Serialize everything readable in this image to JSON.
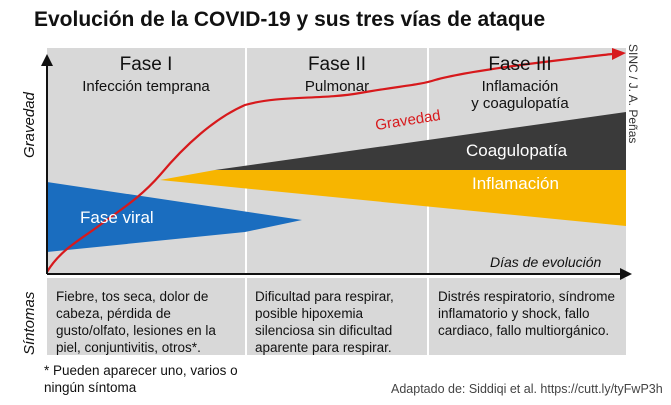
{
  "title": "Evolución de la COVID-19 y sus tres vías de ataque",
  "credit": "SINC / J. A. Peñas",
  "axis": {
    "y_label": "Gravedad",
    "x_label": "Días de evolución",
    "symptoms_label": "Síntomas"
  },
  "phases": [
    {
      "title": "Fase I",
      "subtitle": "Infección temprana",
      "symptoms": "Fiebre, tos seca, dolor de cabeza, pérdida de gusto/olfato, lesiones en la piel, conjuntivitis, otros*."
    },
    {
      "title": "Fase II",
      "subtitle": "Pulmonar",
      "symptoms": "Dificultad para respirar, posible hipoxemia silenciosa sin dificultad aparente para respirar."
    },
    {
      "title": "Fase III",
      "subtitle": "Inflamación\ny coagulopatía",
      "symptoms": "Distrés respiratorio, síndrome inflamatorio y shock, fallo cardiaco, fallo multiorgánico."
    }
  ],
  "bands": {
    "viral": "Fase viral",
    "inflammation": "Inflamación",
    "coagulopathy": "Coagulopatía",
    "severity_curve": "Gravedad"
  },
  "colors": {
    "phase_bg": "#d8d8d8",
    "viral": "#1a6dbf",
    "inflammation": "#f7b500",
    "coagulopathy": "#3a3a3a",
    "curve": "#d7191c"
  },
  "footnote": "* Pueden aparecer uno, varios o ningún síntoma",
  "source": "Adaptado de: Siddiqi et al. https://cutt.ly/tyFwP3h"
}
